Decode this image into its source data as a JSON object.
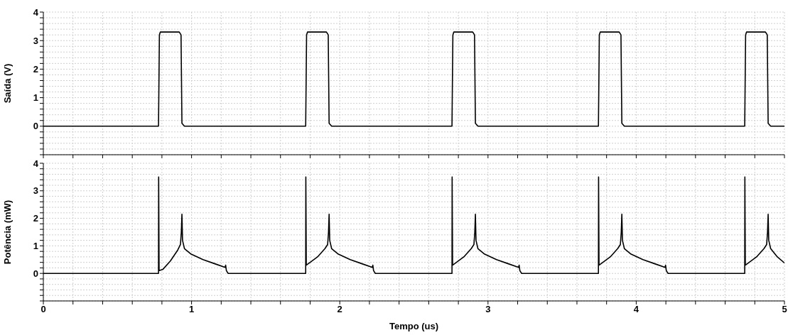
{
  "chart_data": [
    {
      "type": "line",
      "ylabel": "Saída (V)",
      "tick_labels": "y",
      "grid": true,
      "marker": "none",
      "line_style": "solid",
      "xlim": [
        0,
        5
      ],
      "xticks": [
        0,
        {
          "value": 0.2,
          "label": null
        },
        {
          "value": 0.4,
          "label": null
        },
        {
          "value": 0.6,
          "label": null
        },
        {
          "value": 0.8,
          "label": null
        },
        1,
        {
          "value": 1.2,
          "label": null
        },
        {
          "value": 1.4,
          "label": null
        },
        {
          "value": 1.6,
          "label": null
        },
        {
          "value": 1.8,
          "label": null
        },
        2,
        {
          "value": 2.2,
          "label": null
        },
        {
          "value": 2.4,
          "label": null
        },
        {
          "value": 2.6,
          "label": null
        },
        {
          "value": 2.8,
          "label": null
        },
        3,
        {
          "value": 3.2,
          "label": null
        },
        {
          "value": 3.4,
          "label": null
        },
        {
          "value": 3.6,
          "label": null
        },
        {
          "value": 3.8,
          "label": null
        },
        4,
        {
          "value": 4.2,
          "label": null
        },
        {
          "value": 4.4,
          "label": null
        },
        {
          "value": 4.6,
          "label": null
        },
        {
          "value": 4.8,
          "label": null
        },
        5
      ],
      "ylim": [
        -1,
        4
      ],
      "yticks": [
        {
          "value": -1,
          "label": null
        },
        {
          "value": -0.8,
          "label": null
        },
        {
          "value": -0.6,
          "label": null
        },
        {
          "value": -0.4,
          "label": null
        },
        {
          "value": -0.2,
          "label": null
        },
        0,
        {
          "value": 0.2,
          "label": null
        },
        {
          "value": 0.4,
          "label": null
        },
        {
          "value": 0.6,
          "label": null
        },
        {
          "value": 0.8,
          "label": null
        },
        1,
        {
          "value": 1.2,
          "label": null
        },
        {
          "value": 1.4,
          "label": null
        },
        {
          "value": 1.6,
          "label": null
        },
        {
          "value": 1.8,
          "label": null
        },
        2,
        {
          "value": 2.2,
          "label": null
        },
        {
          "value": 2.4,
          "label": null
        },
        {
          "value": 2.6,
          "label": null
        },
        {
          "value": 2.8,
          "label": null
        },
        3,
        {
          "value": 3.2,
          "label": null
        },
        {
          "value": 3.4,
          "label": null
        },
        {
          "value": 3.6,
          "label": null
        },
        {
          "value": 3.8,
          "label": null
        },
        4
      ],
      "series": [
        {
          "color": "#000000",
          "x": [
            0,
            0.777,
            0.783,
            0.789,
            0.917,
            0.929,
            0.935,
            0.952,
            1.77,
            1.776,
            1.782,
            1.91,
            1.922,
            1.928,
            1.945,
            2.757,
            2.763,
            2.769,
            2.897,
            2.909,
            2.915,
            2.932,
            3.745,
            3.751,
            3.757,
            3.885,
            3.897,
            3.903,
            3.92,
            4.732,
            4.738,
            4.744,
            4.872,
            4.884,
            4.89,
            4.907,
            5
          ],
          "values": [
            0,
            0,
            3.2,
            3.3,
            3.3,
            3.2,
            0.1,
            0,
            0,
            3.2,
            3.3,
            3.3,
            3.2,
            0.1,
            0,
            0,
            3.2,
            3.3,
            3.3,
            3.2,
            0.1,
            0,
            0,
            3.2,
            3.3,
            3.3,
            3.2,
            0.1,
            0,
            0,
            3.2,
            3.3,
            3.3,
            3.2,
            0.1,
            0,
            0
          ]
        }
      ]
    },
    {
      "type": "line",
      "xlabel": "Tempo (us)",
      "ylabel": "Potência (mW)",
      "grid": true,
      "marker": "none",
      "line_style": "solid",
      "xlim": [
        0,
        5
      ],
      "xticks": [
        0,
        {
          "value": 0.2,
          "label": null
        },
        {
          "value": 0.4,
          "label": null
        },
        {
          "value": 0.6,
          "label": null
        },
        {
          "value": 0.8,
          "label": null
        },
        1,
        {
          "value": 1.2,
          "label": null
        },
        {
          "value": 1.4,
          "label": null
        },
        {
          "value": 1.6,
          "label": null
        },
        {
          "value": 1.8,
          "label": null
        },
        2,
        {
          "value": 2.2,
          "label": null
        },
        {
          "value": 2.4,
          "label": null
        },
        {
          "value": 2.6,
          "label": null
        },
        {
          "value": 2.8,
          "label": null
        },
        3,
        {
          "value": 3.2,
          "label": null
        },
        {
          "value": 3.4,
          "label": null
        },
        {
          "value": 3.6,
          "label": null
        },
        {
          "value": 3.8,
          "label": null
        },
        4,
        {
          "value": 4.2,
          "label": null
        },
        {
          "value": 4.4,
          "label": null
        },
        {
          "value": 4.6,
          "label": null
        },
        {
          "value": 4.8,
          "label": null
        },
        5
      ],
      "ylim": [
        -1,
        4
      ],
      "yticks": [
        {
          "value": -1,
          "label": null
        },
        {
          "value": -0.8,
          "label": null
        },
        {
          "value": -0.6,
          "label": null
        },
        {
          "value": -0.4,
          "label": null
        },
        {
          "value": -0.2,
          "label": null
        },
        0,
        {
          "value": 0.2,
          "label": null
        },
        {
          "value": 0.4,
          "label": null
        },
        {
          "value": 0.6,
          "label": null
        },
        {
          "value": 0.8,
          "label": null
        },
        1,
        {
          "value": 1.2,
          "label": null
        },
        {
          "value": 1.4,
          "label": null
        },
        {
          "value": 1.6,
          "label": null
        },
        {
          "value": 1.8,
          "label": null
        },
        2,
        {
          "value": 2.2,
          "label": null
        },
        {
          "value": 2.4,
          "label": null
        },
        {
          "value": 2.6,
          "label": null
        },
        {
          "value": 2.8,
          "label": null
        },
        3,
        {
          "value": 3.2,
          "label": null
        },
        {
          "value": 3.4,
          "label": null
        },
        {
          "value": 3.6,
          "label": null
        },
        {
          "value": 3.8,
          "label": null
        },
        4
      ],
      "series": [
        {
          "color": "#000000",
          "x": [
            0,
            0.777,
            0.778,
            0.781,
            0.807,
            0.857,
            0.907,
            0.925,
            0.931,
            0.935,
            0.939,
            0.952,
            0.997,
            1.077,
            1.157,
            1.227,
            1.23,
            1.235,
            1.247,
            1.77,
            1.771,
            1.774,
            1.8,
            1.85,
            1.9,
            1.918,
            1.924,
            1.928,
            1.932,
            1.945,
            1.99,
            2.07,
            2.15,
            2.22,
            2.223,
            2.228,
            2.24,
            2.757,
            2.758,
            2.761,
            2.787,
            2.837,
            2.887,
            2.905,
            2.911,
            2.915,
            2.919,
            2.932,
            2.977,
            3.057,
            3.137,
            3.207,
            3.21,
            3.215,
            3.227,
            3.745,
            3.746,
            3.749,
            3.775,
            3.825,
            3.875,
            3.893,
            3.899,
            3.903,
            3.907,
            3.92,
            3.965,
            4.045,
            4.125,
            4.195,
            4.198,
            4.203,
            4.215,
            4.732,
            4.733,
            4.736,
            4.762,
            4.812,
            4.862,
            4.88,
            4.886,
            4.89,
            4.894,
            4.907,
            4.952,
            5
          ],
          "values": [
            0,
            0,
            3.5,
            0.1,
            0.15,
            0.45,
            0.85,
            1.05,
            1.5,
            2.15,
            1.2,
            0.9,
            0.7,
            0.5,
            0.35,
            0.22,
            0.3,
            0.1,
            0,
            0,
            3.5,
            0.3,
            0.4,
            0.6,
            0.9,
            1.05,
            1.5,
            2.15,
            1.2,
            0.9,
            0.7,
            0.5,
            0.35,
            0.22,
            0.3,
            0.1,
            0,
            0,
            3.5,
            0.3,
            0.4,
            0.6,
            0.9,
            1.05,
            1.5,
            2.15,
            1.2,
            0.9,
            0.7,
            0.5,
            0.35,
            0.22,
            0.3,
            0.1,
            0,
            0,
            3.5,
            0.3,
            0.4,
            0.6,
            0.9,
            1.05,
            1.5,
            2.15,
            1.2,
            0.9,
            0.7,
            0.5,
            0.35,
            0.22,
            0.3,
            0.1,
            0,
            0,
            3.5,
            0.3,
            0.4,
            0.6,
            0.9,
            1.05,
            1.5,
            2.15,
            1.2,
            0.9,
            0.6,
            0.38
          ]
        }
      ]
    }
  ]
}
